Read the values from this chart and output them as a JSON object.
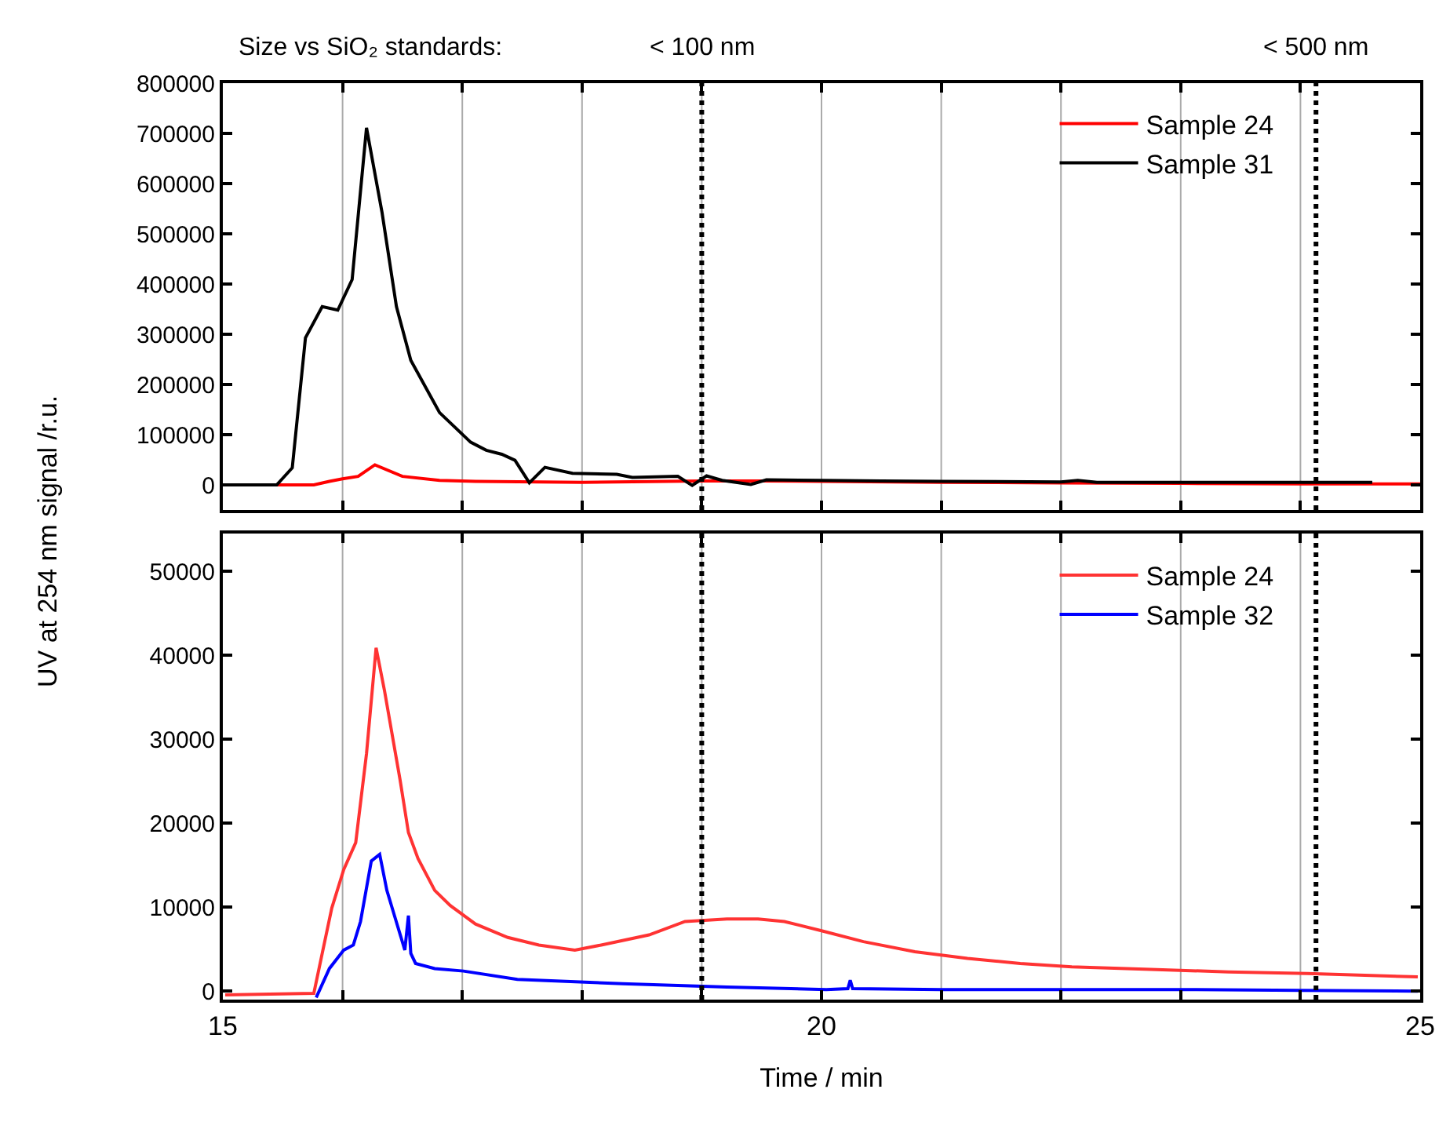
{
  "chart_data": [
    {
      "type": "line",
      "ylabel": "UV at 254 nm signal /r.u.",
      "annotations": [
        "Size vs SiO₂ standards:"
      ],
      "xlim": [
        15,
        25
      ],
      "xticks": [
        15,
        {
          "value": 16,
          "label": null
        },
        {
          "value": 17,
          "label": null
        },
        {
          "value": 18,
          "label": null
        },
        {
          "value": 19,
          "label": null
        },
        20,
        {
          "value": 21,
          "label": null
        },
        {
          "value": 22,
          "label": null
        },
        {
          "value": 23,
          "label": null
        },
        {
          "value": 24,
          "label": null
        },
        25
      ],
      "ylim": [
        -50000,
        800000
      ],
      "yticks": [
        0,
        100000,
        200000,
        300000,
        400000,
        500000,
        600000,
        700000,
        800000
      ],
      "tick_labels": "y",
      "grid": "x",
      "legend": "top right",
      "marker": "none",
      "line_style": "solid",
      "ref_lines": [
        {
          "axis": "x",
          "value": 19,
          "label": "< 100 nm",
          "color": "#000000",
          "line_style": "dotted"
        },
        {
          "axis": "x",
          "value": 24.13,
          "label": "< 500 nm",
          "color": "#000000",
          "line_style": "dotted"
        }
      ],
      "series": [
        {
          "name": "Sample 24",
          "color": "#ff0000",
          "x": [
            15,
            15.76,
            15.89,
            16.0,
            16.13,
            16.27,
            16.5,
            16.81,
            17.11,
            18,
            19,
            19.5,
            20,
            21,
            22,
            23,
            24,
            25
          ],
          "values": [
            0,
            0,
            7000,
            12000,
            17000,
            40000,
            17000,
            9000,
            7000,
            5000,
            8000,
            8000,
            7000,
            5000,
            4000,
            3000,
            2000,
            2000
          ]
        },
        {
          "name": "Sample 31",
          "color": "#000000",
          "x": [
            15,
            15.45,
            15.58,
            15.69,
            15.83,
            15.96,
            16.08,
            16.2,
            16.33,
            16.45,
            16.57,
            16.81,
            17.07,
            17.2,
            17.33,
            17.44,
            17.56,
            17.69,
            17.92,
            18.29,
            18.42,
            18.8,
            18.92,
            19.04,
            19.17,
            19.41,
            19.54,
            20.0,
            20.5,
            21,
            22,
            22.14,
            22.3,
            23,
            24,
            24.6
          ],
          "values": [
            0,
            0,
            34000,
            293000,
            355000,
            348000,
            409000,
            711000,
            542000,
            355000,
            248000,
            144000,
            85000,
            69000,
            61000,
            49000,
            4000,
            35000,
            23000,
            21000,
            15000,
            17000,
            -1000,
            18000,
            9000,
            1000,
            10000,
            9000,
            8000,
            7000,
            6000,
            9000,
            5000,
            5000,
            5000,
            5000
          ]
        }
      ]
    },
    {
      "type": "line",
      "xlabel": "Time / min",
      "xlim": [
        15,
        25
      ],
      "xticks": [
        15,
        {
          "value": 16,
          "label": null
        },
        {
          "value": 17,
          "label": null
        },
        {
          "value": 18,
          "label": null
        },
        {
          "value": 19,
          "label": null
        },
        20,
        {
          "value": 21,
          "label": null
        },
        {
          "value": 22,
          "label": null
        },
        {
          "value": 23,
          "label": null
        },
        {
          "value": 24,
          "label": null
        },
        25
      ],
      "ylim": [
        -1000,
        54500
      ],
      "yticks": [
        0,
        10000,
        20000,
        30000,
        40000,
        50000
      ],
      "grid": "x",
      "legend": "top right",
      "marker": "none",
      "line_style": "solid",
      "ref_lines": [
        {
          "axis": "x",
          "value": 19,
          "color": "#000000",
          "line_style": "dotted"
        },
        {
          "axis": "x",
          "value": 24.13,
          "color": "#000000",
          "line_style": "dotted"
        }
      ],
      "series": [
        {
          "name": "Sample 24",
          "color": "#ff3333",
          "x": [
            15.02,
            15.76,
            15.83,
            15.91,
            16.01,
            16.11,
            16.2,
            16.28,
            16.35,
            16.48,
            16.55,
            16.63,
            16.77,
            16.9,
            17.11,
            17.38,
            17.64,
            17.94,
            18.16,
            18.56,
            18.86,
            19.21,
            19.47,
            19.69,
            20.0,
            20.35,
            20.78,
            21.22,
            21.66,
            22.09,
            22.75,
            23.4,
            24.06,
            24.98
          ],
          "values": [
            -430,
            -250,
            4500,
            9900,
            14500,
            17700,
            28300,
            40900,
            35800,
            25200,
            18900,
            15800,
            12000,
            10200,
            8000,
            6400,
            5500,
            4900,
            5500,
            6700,
            8300,
            8600,
            8600,
            8300,
            7200,
            5900,
            4700,
            3900,
            3300,
            2900,
            2600,
            2300,
            2100,
            1700
          ]
        },
        {
          "name": "Sample 32",
          "color": "#0000ff",
          "x": [
            15.78,
            15.89,
            16.01,
            16.09,
            16.15,
            16.24,
            16.31,
            16.37,
            16.52,
            16.55,
            16.57,
            16.61,
            16.77,
            17.01,
            17.46,
            18.34,
            19.21,
            20.04,
            20.22,
            20.24,
            20.26,
            21,
            22,
            23,
            24,
            24.98
          ],
          "values": [
            -750,
            2700,
            4900,
            5500,
            8300,
            15500,
            16300,
            12000,
            4900,
            9000,
            4500,
            3300,
            2700,
            2400,
            1400,
            900,
            500,
            200,
            300,
            1300,
            300,
            200,
            200,
            200,
            100,
            0
          ]
        }
      ]
    }
  ]
}
